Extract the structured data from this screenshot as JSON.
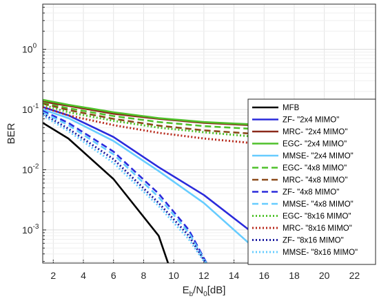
{
  "chart_data": {
    "type": "line",
    "title": "",
    "xlabel": {
      "main": "E",
      "sub1": "b",
      "mid": "/N",
      "sub2": "0",
      "tail": "[dB]"
    },
    "ylabel": "BER",
    "xlim": [
      1.3,
      23.4
    ],
    "ylim_log10": [
      -3.55,
      0.75
    ],
    "y_scale": "log",
    "grid": true,
    "legend_position": "right",
    "x_ticks": [
      2,
      4,
      6,
      8,
      10,
      12,
      14,
      16,
      18,
      20,
      22
    ],
    "x_tick_labels": [
      "2",
      "4",
      "6",
      "8",
      "10",
      "12",
      "14",
      "16",
      "18",
      "20",
      "22"
    ],
    "y_ticks": [
      {
        "value": 1,
        "base": "10",
        "exp": "0"
      },
      {
        "value": 0.1,
        "base": "10",
        "exp": "-1"
      },
      {
        "value": 0.01,
        "base": "10",
        "exp": "-2"
      },
      {
        "value": 0.001,
        "base": "10",
        "exp": "-3"
      }
    ],
    "series": [
      {
        "name": "MFB",
        "color": "#000000",
        "style": "solid",
        "x": [
          1.3,
          3,
          6,
          9,
          10
        ],
        "y": [
          0.06,
          0.033,
          0.007,
          0.0008,
          0.00015
        ]
      },
      {
        "name": "ZF-  \"2x4 MIMO\"",
        "color": "#2a2adb",
        "style": "solid",
        "x": [
          1.3,
          3,
          6,
          9,
          12,
          15
        ],
        "y": [
          0.11,
          0.08,
          0.035,
          0.011,
          0.0038,
          0.001
        ]
      },
      {
        "name": "MRC- \"2x4 MIMO\"",
        "color": "#8b2a1a",
        "style": "solid",
        "x": [
          1.3,
          3,
          6,
          9,
          12,
          15
        ],
        "y": [
          0.135,
          0.115,
          0.085,
          0.07,
          0.06,
          0.055
        ]
      },
      {
        "name": "EGC- \"2x4 MIMO\"",
        "color": "#4fc12a",
        "style": "solid",
        "x": [
          1.3,
          3,
          6,
          9,
          12,
          15
        ],
        "y": [
          0.145,
          0.12,
          0.09,
          0.072,
          0.062,
          0.057
        ]
      },
      {
        "name": "MMSE- \"2x4 MIMO\"",
        "color": "#66ccff",
        "style": "solid",
        "x": [
          1.3,
          3,
          6,
          9,
          12,
          15
        ],
        "y": [
          0.1,
          0.072,
          0.03,
          0.0095,
          0.0028,
          0.0006
        ]
      },
      {
        "name": "EGC- \"4x8 MIMO\"",
        "color": "#4fc12a",
        "style": "dashed",
        "x": [
          1.3,
          3,
          6,
          9,
          12,
          15
        ],
        "y": [
          0.13,
          0.105,
          0.078,
          0.062,
          0.053,
          0.048
        ]
      },
      {
        "name": "MRC- \"4x8 MIMO\"",
        "color": "#8b4a1a",
        "style": "dashed",
        "x": [
          1.3,
          3,
          6,
          9,
          12,
          15
        ],
        "y": [
          0.125,
          0.098,
          0.07,
          0.054,
          0.045,
          0.04
        ]
      },
      {
        "name": "ZF- \"4x8 MIMO\"",
        "color": "#2a2adb",
        "style": "dashed",
        "x": [
          1.3,
          3,
          6,
          9,
          11,
          12.5
        ],
        "y": [
          0.095,
          0.06,
          0.02,
          0.004,
          0.001,
          0.0002
        ]
      },
      {
        "name": "MMSE- \"4x8 MIMO\"",
        "color": "#66ccff",
        "style": "dashed",
        "x": [
          1.3,
          3,
          6,
          9,
          11,
          12.5
        ],
        "y": [
          0.09,
          0.055,
          0.018,
          0.0035,
          0.0009,
          0.0002
        ]
      },
      {
        "name": "EGC- \"8x16 MIMO\"",
        "color": "#4fc12a",
        "style": "dotted",
        "x": [
          1.3,
          3,
          6,
          9,
          12,
          15
        ],
        "y": [
          0.12,
          0.09,
          0.065,
          0.05,
          0.042,
          0.036
        ]
      },
      {
        "name": "MRC- \"8x16 MIMO\"",
        "color": "#b8281a",
        "style": "dotted",
        "x": [
          1.3,
          3,
          6,
          9,
          12,
          15
        ],
        "y": [
          0.11,
          0.08,
          0.055,
          0.041,
          0.033,
          0.028
        ]
      },
      {
        "name": "ZF- \"8x16 MIMO\"",
        "color": "#1a1aa0",
        "style": "dotted",
        "x": [
          1.3,
          3,
          6,
          9,
          11,
          12.5
        ],
        "y": [
          0.085,
          0.048,
          0.015,
          0.0028,
          0.0008,
          0.0002
        ]
      },
      {
        "name": "MMSE- \"8x16 MIMO\"",
        "color": "#66ccff",
        "style": "dotted",
        "x": [
          1.3,
          3,
          6,
          9,
          11,
          12.5
        ],
        "y": [
          0.08,
          0.044,
          0.013,
          0.0025,
          0.0007,
          0.0002
        ]
      }
    ]
  }
}
